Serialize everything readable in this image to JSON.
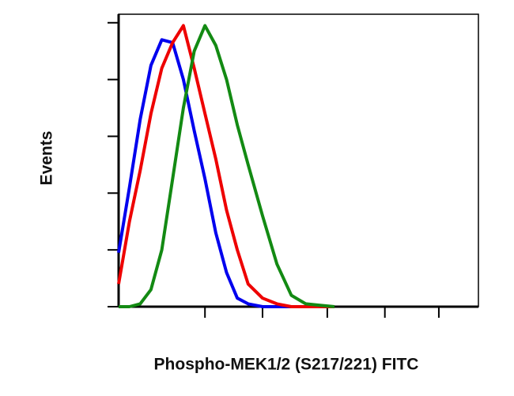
{
  "chart_data": {
    "type": "line",
    "x_label": "Phospho-MEK1/2 (S217/221) FITC",
    "y_label": "Events",
    "x": [
      0,
      3,
      6,
      9,
      12,
      15,
      18,
      21,
      24,
      27,
      30,
      33,
      36,
      40,
      44,
      48,
      52,
      56,
      60
    ],
    "series": [
      {
        "color": "#0000ee",
        "values": [
          19,
          42,
          66,
          85,
          94,
          93,
          80,
          62,
          45,
          26,
          12,
          3,
          1,
          0,
          0,
          0,
          0,
          0,
          0
        ]
      },
      {
        "color": "#ee0000",
        "values": [
          8,
          30,
          48,
          68,
          84,
          93,
          99,
          84,
          68,
          52,
          34,
          20,
          8,
          3,
          1,
          0,
          0,
          0,
          0
        ]
      },
      {
        "color": "#138a13",
        "values": [
          0,
          0,
          1,
          6,
          20,
          45,
          70,
          90,
          99,
          92,
          80,
          64,
          50,
          32,
          15,
          4,
          1,
          0.5,
          0
        ]
      }
    ],
    "xlim": [
      0,
      100
    ],
    "ylim": [
      0,
      103
    ],
    "xticks": [
      24,
      40,
      58,
      74,
      89
    ],
    "yticks": [
      0,
      20,
      40,
      60,
      80,
      100
    ]
  }
}
